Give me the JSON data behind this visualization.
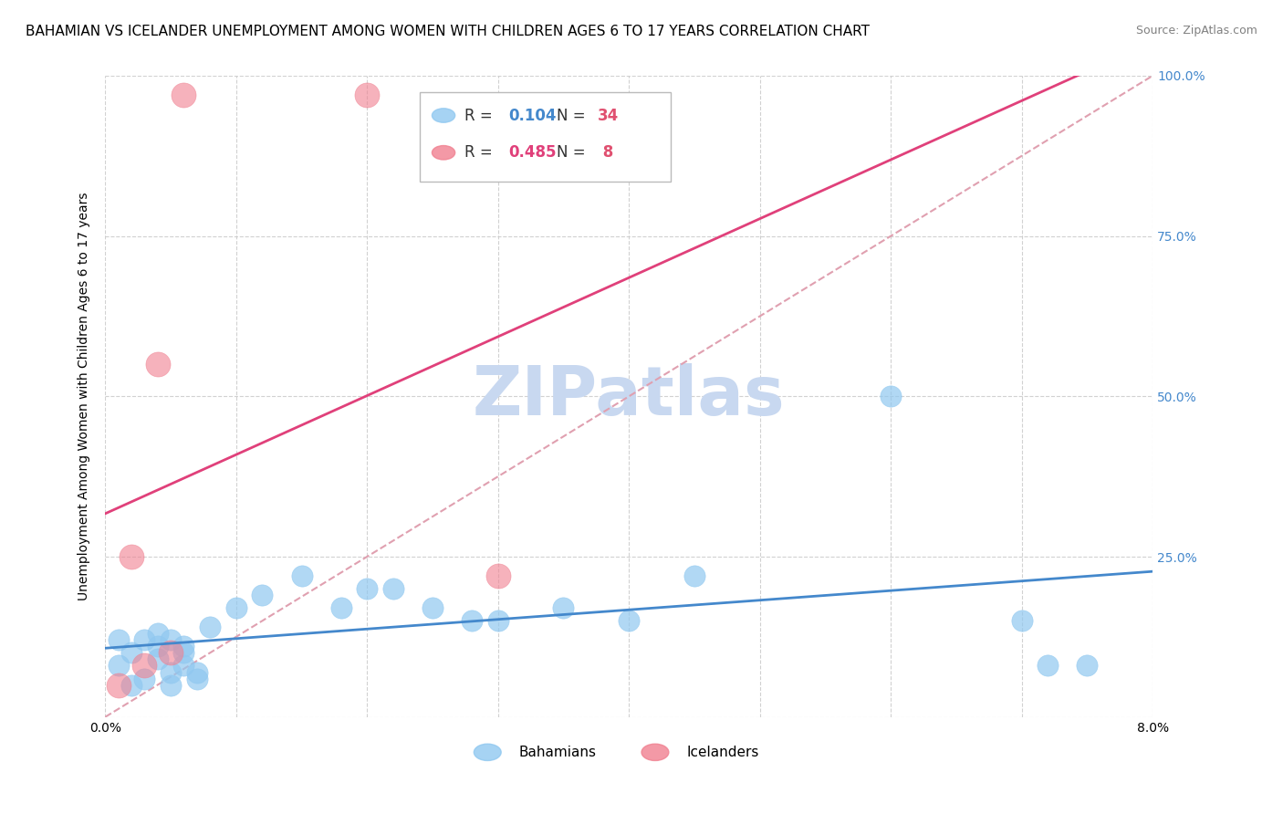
{
  "title": "BAHAMIAN VS ICELANDER UNEMPLOYMENT AMONG WOMEN WITH CHILDREN AGES 6 TO 17 YEARS CORRELATION CHART",
  "source": "Source: ZipAtlas.com",
  "ylabel": "Unemployment Among Women with Children Ages 6 to 17 years",
  "xlim": [
    0.0,
    0.08
  ],
  "ylim": [
    0.0,
    1.0
  ],
  "xticks": [
    0.0,
    0.01,
    0.02,
    0.03,
    0.04,
    0.05,
    0.06,
    0.07,
    0.08
  ],
  "yticks": [
    0.0,
    0.25,
    0.5,
    0.75,
    1.0
  ],
  "xtick_labels": [
    "0.0%",
    "",
    "",
    "",
    "",
    "",
    "",
    "",
    "8.0%"
  ],
  "ytick_labels": [
    "",
    "25.0%",
    "50.0%",
    "75.0%",
    "100.0%"
  ],
  "bahamian_x": [
    0.001,
    0.001,
    0.002,
    0.002,
    0.003,
    0.003,
    0.004,
    0.004,
    0.004,
    0.005,
    0.005,
    0.005,
    0.006,
    0.006,
    0.006,
    0.007,
    0.007,
    0.008,
    0.01,
    0.012,
    0.015,
    0.018,
    0.02,
    0.022,
    0.025,
    0.028,
    0.03,
    0.035,
    0.04,
    0.045,
    0.06,
    0.07,
    0.075,
    0.072
  ],
  "bahamian_y": [
    0.12,
    0.08,
    0.05,
    0.1,
    0.06,
    0.12,
    0.09,
    0.11,
    0.13,
    0.07,
    0.05,
    0.12,
    0.08,
    0.1,
    0.11,
    0.06,
    0.07,
    0.14,
    0.17,
    0.19,
    0.22,
    0.17,
    0.2,
    0.2,
    0.17,
    0.15,
    0.15,
    0.17,
    0.15,
    0.22,
    0.5,
    0.15,
    0.08,
    0.08
  ],
  "icelander_x": [
    0.001,
    0.002,
    0.003,
    0.004,
    0.005,
    0.006,
    0.02,
    0.03
  ],
  "icelander_y": [
    0.05,
    0.25,
    0.08,
    0.55,
    0.1,
    0.97,
    0.97,
    0.22
  ],
  "blue_R": 0.104,
  "blue_N": 34,
  "pink_R": 0.485,
  "pink_N": 8,
  "bahamian_color": "#90C8F0",
  "icelander_color": "#F08090",
  "blue_line_color": "#4488CC",
  "pink_line_color": "#E0407A",
  "diag_line_color": "#E0A0B0",
  "watermark_color": "#C8D8F0",
  "background_color": "#FFFFFF",
  "title_fontsize": 11,
  "axis_label_fontsize": 10,
  "tick_fontsize": 10
}
